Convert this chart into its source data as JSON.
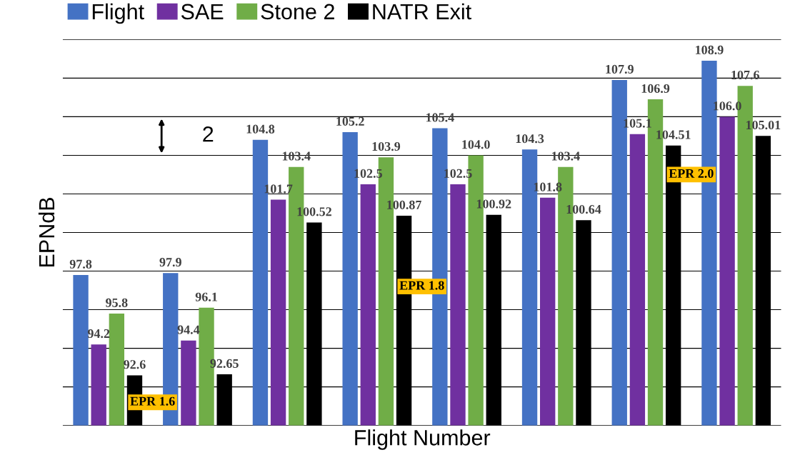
{
  "chart_data": {
    "type": "bar",
    "xlabel": "Flight Number",
    "ylabel": "EPNdB",
    "categories": [
      null,
      null,
      null,
      null,
      null,
      null,
      null,
      null
    ],
    "series": [
      {
        "name": "Flight",
        "color": "#4472c4",
        "values": [
          97.8,
          97.9,
          104.8,
          105.2,
          105.4,
          104.3,
          107.9,
          108.9
        ],
        "value_labels": [
          "97.8",
          "97.9",
          "104.8",
          "105.2",
          "105.4",
          "104.3",
          "107.9",
          "108.9"
        ]
      },
      {
        "name": "SAE",
        "color": "#7030a0",
        "values": [
          94.2,
          94.4,
          101.7,
          102.5,
          102.5,
          101.8,
          105.1,
          106.0
        ],
        "value_labels": [
          "94.2",
          "94.4",
          "101.7",
          "102.5",
          "102.5",
          "101.8",
          "105.1",
          "106.0"
        ]
      },
      {
        "name": "Stone 2",
        "color": "#70ad47",
        "values": [
          95.8,
          96.1,
          103.4,
          103.9,
          104.0,
          103.4,
          106.9,
          107.6
        ],
        "value_labels": [
          "95.8",
          "96.1",
          "103.4",
          "103.9",
          "104.0",
          "103.4",
          "106.9",
          "107.6"
        ]
      },
      {
        "name": "NATR Exit",
        "color": "#000000",
        "values": [
          92.6,
          92.65,
          100.52,
          100.87,
          100.92,
          100.64,
          104.51,
          105.01
        ],
        "value_labels": [
          "92.6",
          "92.65",
          "100.52",
          "100.87",
          "100.92",
          "100.64",
          "104.51",
          "105.01"
        ]
      }
    ],
    "ylim": [
      90,
      110
    ],
    "yticks": [
      {
        "value": 90,
        "label": null
      },
      {
        "value": 92,
        "label": null
      },
      {
        "value": 94,
        "label": null
      },
      {
        "value": 96,
        "label": null
      },
      {
        "value": 98,
        "label": null
      },
      {
        "value": 100,
        "label": null
      },
      {
        "value": 102,
        "label": null
      },
      {
        "value": 104,
        "label": null
      },
      {
        "value": 106,
        "label": null
      },
      {
        "value": 108,
        "label": null
      },
      {
        "value": 110,
        "label": null
      }
    ],
    "tick_labels": false,
    "grid": "y",
    "legend": "top",
    "annotations": [
      "2",
      "EPR 1.6",
      "EPR 1.8",
      "EPR 2.0"
    ]
  }
}
